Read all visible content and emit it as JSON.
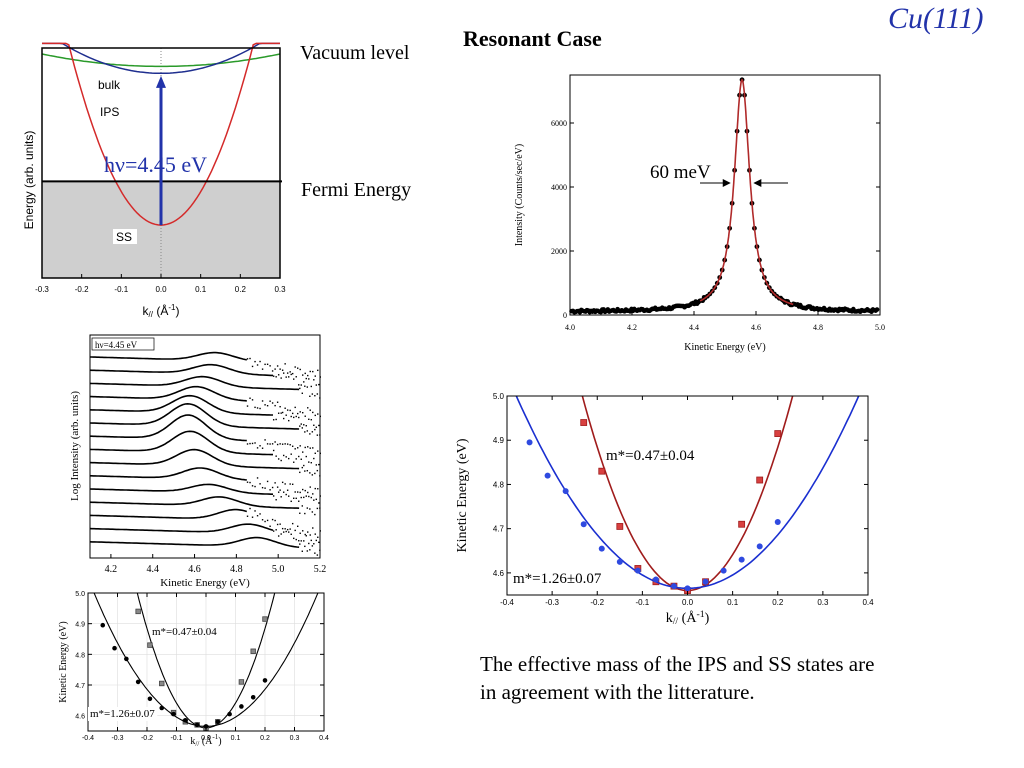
{
  "slide": {
    "title": "Cu(111)",
    "heading": "Resonant Case",
    "vacuum_label": "Vacuum level",
    "fermi_label": "Fermi Energy",
    "conclusion_line1": "The effective mass of the IPS and SS states are",
    "conclusion_line2": "in agreement with the  litterature."
  },
  "chart_data": [
    {
      "id": "band-diagram",
      "type": "line",
      "xlabel": "k// (Å-1)",
      "ylabel": "Energy (arb. units)",
      "xlim": [
        -0.3,
        0.3
      ],
      "ylim": [
        0,
        1
      ],
      "xticks": [
        "-0.3",
        "-0.2",
        "-0.1",
        "0.0",
        "0.1",
        "0.2",
        "0.3"
      ],
      "fermi_level": 0.42,
      "labels": {
        "bulk": "bulk",
        "ips": "IPS",
        "ss": "SS",
        "photon": "hν=4.45 eV"
      },
      "series": [
        {
          "name": "bulk",
          "color": "#2a9a2a",
          "vertex": 0.92,
          "curv": 0.6
        },
        {
          "name": "IPS",
          "color": "#1f2f8f",
          "vertex": 0.89,
          "curv": 2.1
        },
        {
          "name": "SS",
          "color": "#d42a2a",
          "vertex": 0.23,
          "curv": 14.5
        }
      ],
      "photon": {
        "color": "#2233aa",
        "from": 0.23,
        "to": 0.87
      }
    },
    {
      "id": "resonant-peak",
      "type": "scatter",
      "xlabel": "Kinetic Energy (eV)",
      "ylabel": "Intensity (Counts/sec/eV)",
      "xlim": [
        4.0,
        5.0
      ],
      "ylim": [
        0,
        7500
      ],
      "xticks": [
        "4.0",
        "4.2",
        "4.4",
        "4.6",
        "4.8",
        "5.0"
      ],
      "yticks": [
        "0",
        "2000",
        "4000",
        "6000"
      ],
      "annotation": "60 meV",
      "peak": {
        "center": 4.555,
        "fwhm": 0.06,
        "amplitude": 7250,
        "background": 100
      },
      "fit_color": "#b02a2a"
    },
    {
      "id": "log-spectra",
      "type": "line",
      "legend": "hν=4.45 eV",
      "xlabel": "Kinetic Energy (eV)",
      "ylabel": "Log Intensity (arb. units)",
      "xlim": [
        4.1,
        5.2
      ],
      "xticks": [
        "4.2",
        "4.4",
        "4.6",
        "4.8",
        "5.0",
        "5.2"
      ],
      "spectra_peaks": [
        {
          "offset": 0.0,
          "peak": 4.7,
          "amp": 0.8
        },
        {
          "offset": 1,
          "peak": 4.68,
          "amp": 0.9
        },
        {
          "offset": 2,
          "peak": 4.64,
          "amp": 1.0
        },
        {
          "offset": 3,
          "peak": 4.61,
          "amp": 1.3
        },
        {
          "offset": 4,
          "peak": 4.58,
          "amp": 1.7
        },
        {
          "offset": 5,
          "peak": 4.57,
          "amp": 2.2
        },
        {
          "offset": 6,
          "peak": 4.57,
          "amp": 2.4
        },
        {
          "offset": 7,
          "peak": 4.58,
          "amp": 2.1
        },
        {
          "offset": 8,
          "peak": 4.6,
          "amp": 1.6
        },
        {
          "offset": 9,
          "peak": 4.63,
          "amp": 1.1
        },
        {
          "offset": 10,
          "peak": 4.67,
          "amp": 0.8
        },
        {
          "offset": 11,
          "peak": 4.72,
          "amp": 0.9
        },
        {
          "offset": 12,
          "peak": 4.8,
          "amp": 1.0
        },
        {
          "offset": 13,
          "peak": 4.86,
          "amp": 0.9
        },
        {
          "offset": 14,
          "peak": 4.9,
          "amp": 0.9
        }
      ]
    },
    {
      "id": "dispersion-small",
      "type": "scatter",
      "xlabel": "k// (Å-1)",
      "ylabel": "Kinetic Energy (eV)",
      "xlim": [
        -0.4,
        0.4
      ],
      "ylim": [
        4.55,
        5.0
      ],
      "xticks": [
        "-0.4",
        "-0.3",
        "-0.2",
        "-0.1",
        "0.0",
        "0.1",
        "0.2",
        "0.3",
        "0.4"
      ],
      "yticks": [
        "4.6",
        "4.7",
        "4.8",
        "4.9",
        "5.0"
      ],
      "annotations": [
        "m*=0.47±0.04",
        "m*=1.26±0.07"
      ],
      "series": [
        {
          "name": "IPS",
          "x": [
            -0.23,
            -0.19,
            -0.15,
            -0.11,
            -0.07,
            -0.03,
            0.0,
            0.04,
            0.12,
            0.16,
            0.2
          ],
          "y": [
            4.94,
            4.83,
            4.705,
            4.61,
            4.58,
            4.57,
            4.56,
            4.58,
            4.71,
            4.81,
            4.915
          ]
        },
        {
          "name": "SS",
          "x": [
            -0.35,
            -0.31,
            -0.27,
            -0.23,
            -0.19,
            -0.15,
            -0.11,
            -0.07,
            -0.03,
            0.0,
            0.04,
            0.08,
            0.12,
            0.16,
            0.2
          ],
          "y": [
            4.895,
            4.82,
            4.785,
            4.71,
            4.655,
            4.625,
            4.605,
            4.585,
            4.57,
            4.565,
            4.58,
            4.605,
            4.63,
            4.66,
            4.715
          ]
        }
      ]
    },
    {
      "id": "dispersion-large",
      "type": "scatter",
      "xlabel": "k// (Å-1)",
      "ylabel": "Kinetic Energy (eV)",
      "xlim": [
        -0.4,
        0.4
      ],
      "ylim": [
        4.55,
        5.0
      ],
      "xticks": [
        "-0.4",
        "-0.3",
        "-0.2",
        "-0.1",
        "0.0",
        "0.1",
        "0.2",
        "0.3",
        "0.4"
      ],
      "yticks": [
        "4.6",
        "4.7",
        "4.8",
        "4.9",
        "5.0"
      ],
      "annotations": [
        "m*=0.47±0.04",
        "m*=1.26±0.07"
      ],
      "series": [
        {
          "name": "IPS",
          "color": "#a01c1c",
          "fill": "#d84040",
          "x": [
            -0.23,
            -0.19,
            -0.15,
            -0.11,
            -0.07,
            -0.03,
            0.0,
            0.04,
            0.12,
            0.16,
            0.2
          ],
          "y": [
            4.94,
            4.83,
            4.705,
            4.61,
            4.58,
            4.57,
            4.56,
            4.58,
            4.71,
            4.81,
            4.915
          ]
        },
        {
          "name": "SS",
          "color": "#1a2fd0",
          "fill": "#2f4ae0",
          "x": [
            -0.35,
            -0.31,
            -0.27,
            -0.23,
            -0.19,
            -0.15,
            -0.11,
            -0.07,
            -0.03,
            0.0,
            0.04,
            0.08,
            0.12,
            0.16,
            0.2
          ],
          "y": [
            4.895,
            4.82,
            4.785,
            4.71,
            4.655,
            4.625,
            4.605,
            4.585,
            4.57,
            4.565,
            4.58,
            4.605,
            4.63,
            4.66,
            4.715
          ]
        }
      ]
    }
  ]
}
